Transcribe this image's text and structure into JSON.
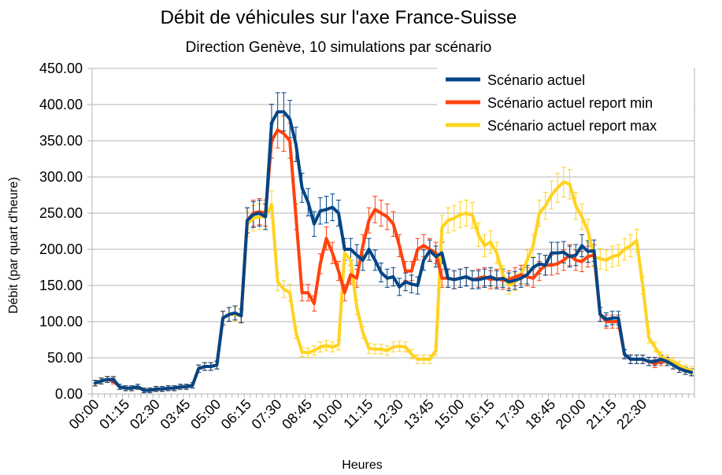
{
  "chart_data": {
    "type": "line",
    "title": "Débit de véhicules sur l'axe France-Suisse",
    "subtitle": "Direction Genève, 10 simulations par scénario",
    "xlabel": "Heures",
    "ylabel": "Débit (par quart d'heure)",
    "ylim": [
      0,
      450
    ],
    "yticks": [
      "0.00",
      "50.00",
      "100.00",
      "150.00",
      "200.00",
      "250.00",
      "300.00",
      "350.00",
      "400.00",
      "450.00"
    ],
    "xtick_labels": [
      "00:00",
      "01:15",
      "02:30",
      "03:45",
      "05:00",
      "06:15",
      "07:30",
      "08:45",
      "10:00",
      "11:15",
      "12:30",
      "13:45",
      "15:00",
      "16:15",
      "17:30",
      "18:45",
      "20:00",
      "21:15",
      "22:30"
    ],
    "grid": true,
    "legend_position": "top-right",
    "series": [
      {
        "name": "Scénario actuel",
        "color": "#004586",
        "values": [
          15,
          18,
          20,
          20,
          10,
          8,
          8,
          10,
          5,
          5,
          7,
          7,
          8,
          8,
          10,
          10,
          12,
          35,
          38,
          38,
          40,
          105,
          110,
          112,
          108,
          240,
          248,
          250,
          245,
          375,
          390,
          390,
          380,
          345,
          285,
          265,
          235,
          253,
          255,
          258,
          250,
          200,
          200,
          192,
          185,
          200,
          185,
          168,
          160,
          162,
          148,
          155,
          152,
          150,
          185,
          198,
          190,
          195,
          160,
          158,
          160,
          162,
          158,
          158,
          160,
          162,
          158,
          160,
          155,
          157,
          160,
          165,
          175,
          180,
          178,
          195,
          195,
          196,
          190,
          192,
          205,
          197,
          198,
          110,
          103,
          105,
          105,
          55,
          48,
          48,
          48,
          45,
          45,
          48,
          45,
          40,
          35,
          32,
          30
        ]
      },
      {
        "name": "Scénario actuel report min",
        "color": "#ff420e",
        "values": [
          15,
          18,
          20,
          18,
          10,
          8,
          8,
          10,
          5,
          5,
          7,
          7,
          8,
          8,
          10,
          10,
          12,
          35,
          38,
          38,
          40,
          105,
          110,
          112,
          108,
          240,
          250,
          252,
          250,
          350,
          365,
          360,
          350,
          245,
          140,
          140,
          125,
          180,
          215,
          195,
          170,
          140,
          165,
          160,
          205,
          240,
          255,
          250,
          245,
          235,
          205,
          170,
          170,
          200,
          205,
          200,
          195,
          160,
          160,
          158,
          160,
          162,
          158,
          160,
          162,
          158,
          160,
          157,
          158,
          162,
          165,
          162,
          160,
          170,
          178,
          178,
          180,
          185,
          192,
          185,
          183,
          190,
          192,
          110,
          100,
          100,
          100,
          55,
          48,
          48,
          48,
          45,
          42,
          45,
          45,
          40,
          35,
          32,
          30
        ]
      },
      {
        "name": "Scénario actuel report max",
        "color": "#ffd320",
        "values": [
          15,
          18,
          20,
          20,
          10,
          8,
          8,
          10,
          5,
          5,
          7,
          7,
          8,
          8,
          10,
          10,
          12,
          35,
          38,
          38,
          40,
          105,
          110,
          110,
          108,
          235,
          243,
          245,
          245,
          262,
          155,
          145,
          140,
          85,
          58,
          57,
          60,
          65,
          67,
          65,
          68,
          195,
          185,
          120,
          85,
          63,
          62,
          62,
          60,
          65,
          66,
          65,
          55,
          48,
          48,
          48,
          60,
          230,
          240,
          243,
          248,
          250,
          247,
          220,
          205,
          210,
          195,
          165,
          150,
          155,
          165,
          185,
          205,
          250,
          260,
          275,
          285,
          293,
          290,
          260,
          245,
          225,
          190,
          187,
          185,
          190,
          192,
          200,
          205,
          212,
          150,
          78,
          65,
          52,
          48,
          45,
          40,
          35,
          33
        ]
      }
    ]
  }
}
